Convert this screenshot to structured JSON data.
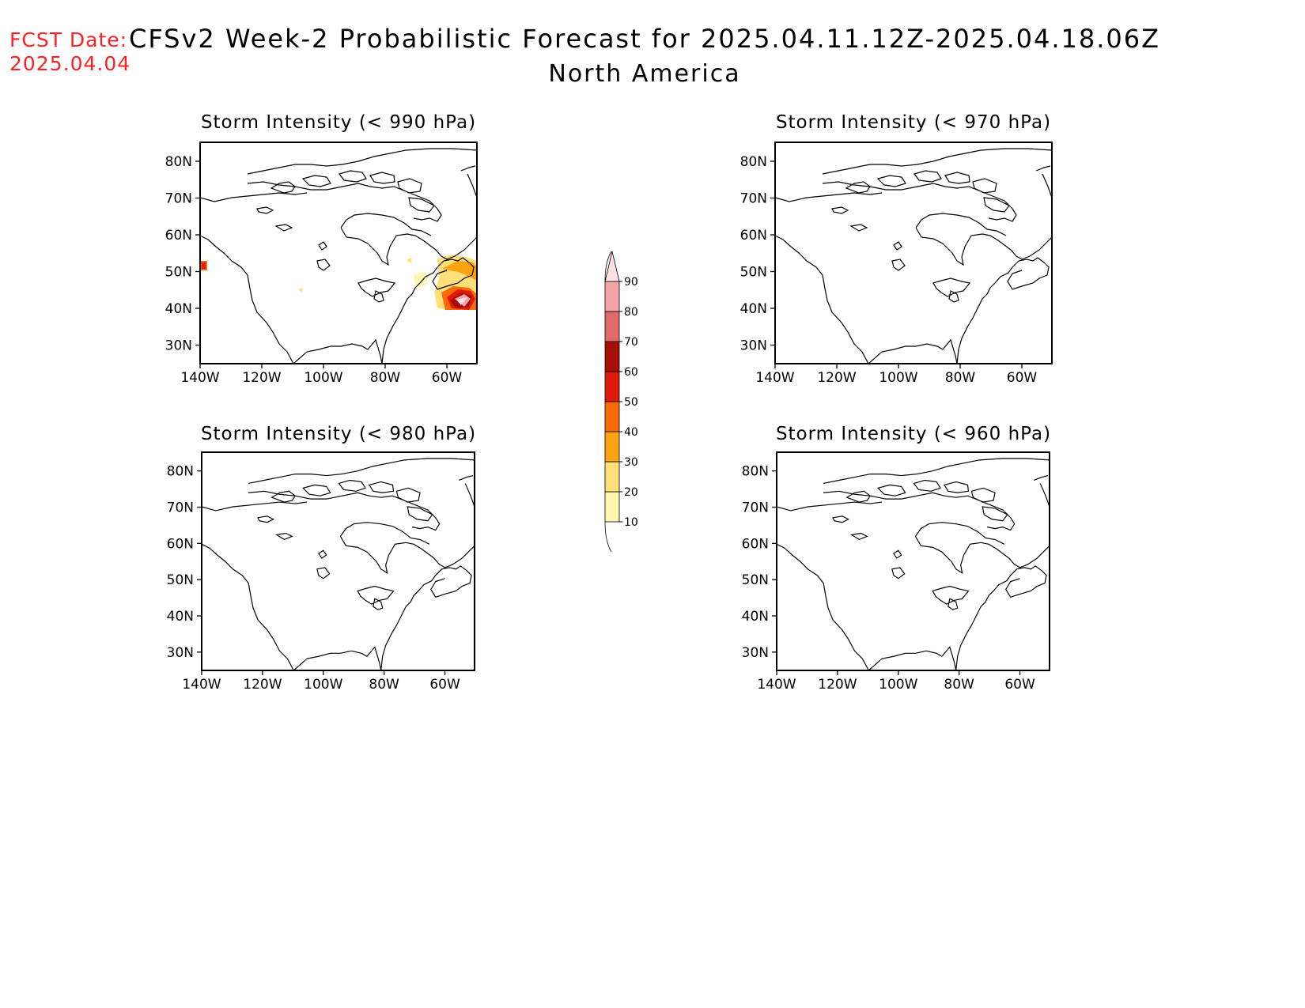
{
  "forecast_date": {
    "label": "FCST Date:",
    "value": "2025.04.04"
  },
  "title": "CFSv2 Week-2 Probabilistic Forecast for 2025.04.11.12Z-2025.04.18.06Z",
  "subtitle": "North America",
  "panels": [
    {
      "title": "Storm Intensity (< 990 hPa)",
      "has_shading": true
    },
    {
      "title": "Storm Intensity (< 970 hPa)",
      "has_shading": false
    },
    {
      "title": "Storm Intensity (< 980 hPa)",
      "has_shading": false
    },
    {
      "title": "Storm Intensity (< 960 hPa)",
      "has_shading": false
    }
  ],
  "axes": {
    "lat_ticks": [
      "80N",
      "70N",
      "60N",
      "50N",
      "40N",
      "30N"
    ],
    "lon_ticks": [
      "140W",
      "120W",
      "100W",
      "80W",
      "60W"
    ]
  },
  "colorbar": {
    "levels": [
      "10",
      "20",
      "30",
      "40",
      "50",
      "60",
      "70",
      "80",
      "90"
    ],
    "colors": [
      "#fff7b0",
      "#fde07a",
      "#fca312",
      "#fb6a08",
      "#e01a0a",
      "#a50f05",
      "#e06a6a",
      "#f4a3a8",
      "#fde0e4"
    ]
  }
}
